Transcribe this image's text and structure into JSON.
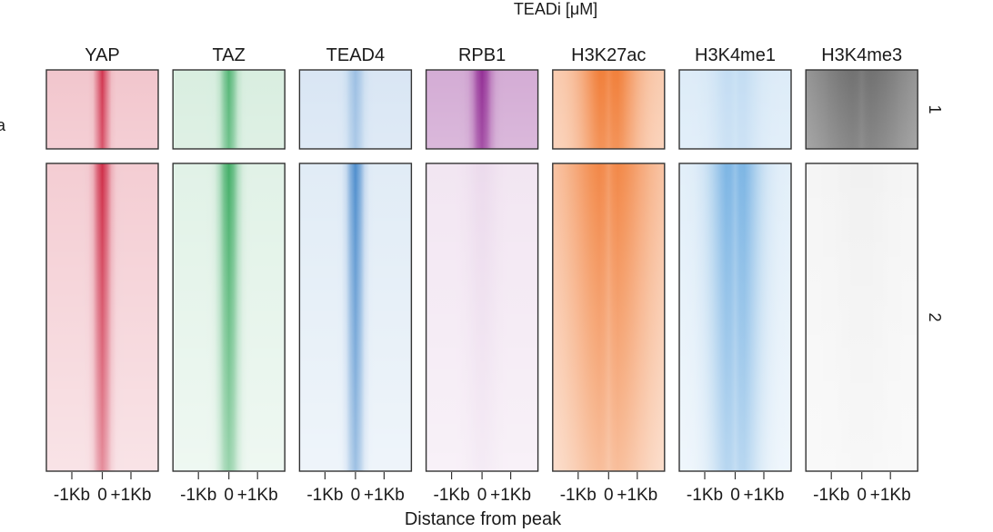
{
  "chart_data": {
    "type": "heatmap",
    "title": "TEADi [μM]",
    "panel_label": "a",
    "xlabel": "Distance from peak",
    "x_ticks": [
      "-1Kb",
      "0",
      "+1Kb"
    ],
    "columns": [
      {
        "name": "YAP",
        "color": "#c8102e"
      },
      {
        "name": "TAZ",
        "color": "#1e9e4a"
      },
      {
        "name": "TEAD4",
        "color": "#1f6fbf"
      },
      {
        "name": "RPB1",
        "color": "#8e2590"
      },
      {
        "name": "H3K27ac",
        "color": "#ef6a1a"
      },
      {
        "name": "H3K4me1",
        "color": "#3a8fd6"
      },
      {
        "name": "H3K4me3",
        "color": "#555555"
      }
    ],
    "clusters": [
      {
        "label": "1",
        "signal": [
          0.85,
          0.75,
          0.35,
          1.0,
          0.95,
          0.2,
          0.75
        ],
        "width": [
          0.08,
          0.1,
          0.1,
          0.12,
          0.38,
          0.3,
          0.7
        ],
        "floor": [
          0.25,
          0.18,
          0.18,
          0.4,
          0.35,
          0.18,
          0.55
        ],
        "dip": [
          0,
          0,
          0,
          0,
          0.25,
          0.35,
          0.2
        ]
      },
      {
        "label": "2",
        "signal": [
          0.9,
          0.85,
          0.8,
          0.06,
          0.8,
          0.75,
          0.03
        ],
        "width": [
          0.1,
          0.12,
          0.1,
          0.2,
          0.55,
          0.32,
          0.4
        ],
        "floor": [
          0.22,
          0.14,
          0.14,
          0.12,
          0.35,
          0.15,
          0.06
        ],
        "dip": [
          0,
          0,
          0,
          0,
          0.3,
          0.35,
          0
        ]
      }
    ]
  }
}
